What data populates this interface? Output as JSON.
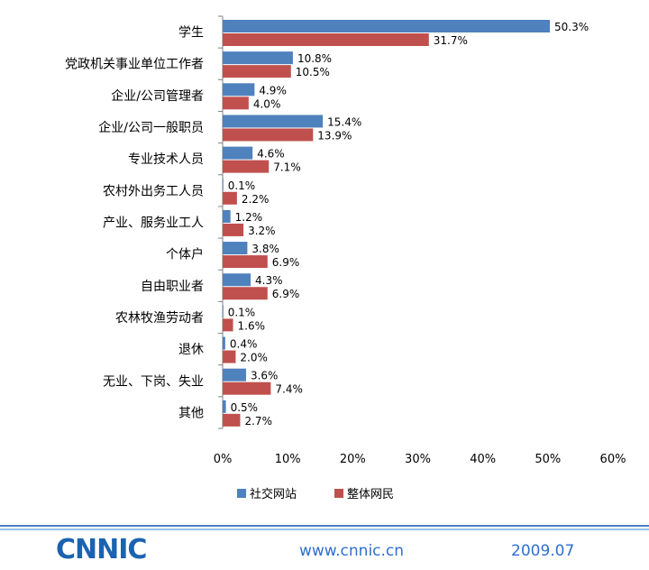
{
  "chart_data": {
    "type": "bar",
    "orientation": "horizontal",
    "categories": [
      "学生",
      "党政机关事业单位工作者",
      "企业/公司管理者",
      "企业/公司一般职员",
      "专业技术人员",
      "农村外出务工人员",
      "产业、服务业工人",
      "个体户",
      "自由职业者",
      "农林牧渔劳动者",
      "退休",
      "无业、下岗、失业",
      "其他"
    ],
    "series": [
      {
        "name": "社交网站",
        "color": "#4f81bd",
        "values": [
          50.3,
          10.8,
          4.9,
          15.4,
          4.6,
          0.1,
          1.2,
          3.8,
          4.3,
          0.1,
          0.4,
          3.6,
          0.5
        ],
        "labels": [
          "50.3%",
          "10.8%",
          "4.9%",
          "15.4%",
          "4.6%",
          "0.1%",
          "1.2%",
          "3.8%",
          "4.3%",
          "0.1%",
          "0.4%",
          "3.6%",
          "0.5%"
        ]
      },
      {
        "name": "整体网民",
        "color": "#c0504d",
        "values": [
          31.7,
          10.5,
          4.0,
          13.9,
          7.1,
          2.2,
          3.2,
          6.9,
          6.9,
          1.6,
          2.0,
          7.4,
          2.7
        ],
        "labels": [
          "31.7%",
          "10.5%",
          "4.0%",
          "13.9%",
          "7.1%",
          "2.2%",
          "3.2%",
          "6.9%",
          "6.9%",
          "1.6%",
          "2.0%",
          "7.4%",
          "2.7%"
        ]
      }
    ],
    "xlim": [
      0,
      60
    ],
    "xticks": [
      0,
      10,
      20,
      30,
      40,
      50,
      60
    ],
    "xtick_labels": [
      "0%",
      "10%",
      "20%",
      "30%",
      "40%",
      "50%",
      "60%"
    ],
    "legend_position": "bottom",
    "grid": false
  },
  "footer": {
    "logo": "CNNIC",
    "url": "www.cnnic.cn",
    "date": "2009.07",
    "line_color": "#8fb3de"
  }
}
